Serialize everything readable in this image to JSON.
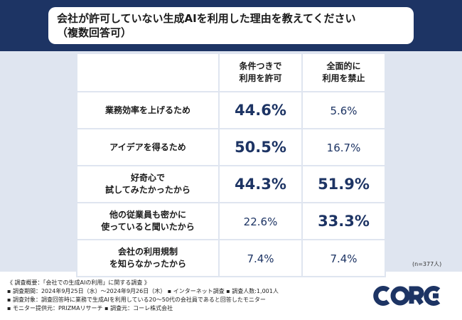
{
  "header": {
    "title_line1": "会社が許可していない生成AIを利用した理由を教えてください",
    "title_line2": "（複数回答可）"
  },
  "chart_data": {
    "type": "table",
    "columns": [
      {
        "line1": "条件つきで",
        "line2": "利用を許可"
      },
      {
        "line1": "全面的に",
        "line2": "利用を禁止"
      }
    ],
    "rows": [
      {
        "line1": "業務効率を上げるため",
        "line2": "",
        "values": [
          "44.6%",
          "5.6%"
        ],
        "emphasis": [
          "big",
          "small"
        ]
      },
      {
        "line1": "アイデアを得るため",
        "line2": "",
        "values": [
          "50.5%",
          "16.7%"
        ],
        "emphasis": [
          "big",
          "small"
        ]
      },
      {
        "line1": "好奇心で",
        "line2": "試してみたかったから",
        "values": [
          "44.3%",
          "51.9%"
        ],
        "emphasis": [
          "big",
          "big"
        ]
      },
      {
        "line1": "他の従業員も密かに",
        "line2": "使っていると聞いたから",
        "values": [
          "22.6%",
          "33.3%"
        ],
        "emphasis": [
          "small",
          "big"
        ]
      },
      {
        "line1": "会社の利用規制",
        "line2": "を知らなかったから",
        "values": [
          "7.4%",
          "7.4%"
        ],
        "emphasis": [
          "small",
          "small"
        ]
      }
    ]
  },
  "sample_note": "(n=377人)",
  "survey": {
    "overview": "《 調査概要：「会社での生成AIの利用」に関する調査 》",
    "period": "▪ 調査期間：2024年9月25日（水）～2024年9月26日（木） ▪ インターネット調査 ▪ 調査人数:1,001人",
    "target": "▪ 調査対象：調査回答時に業務で生成AIを利用している20～50代の会社員であると回答したモニター",
    "provider": "▪ モニター提供元：PRIZMAリサーチ ▪ 調査元：コーレ株式会社"
  },
  "logo": {
    "text": "CORE",
    "color": "#1d3464"
  },
  "colors": {
    "navy": "#1d3464",
    "panel": "#dfe5f0"
  }
}
